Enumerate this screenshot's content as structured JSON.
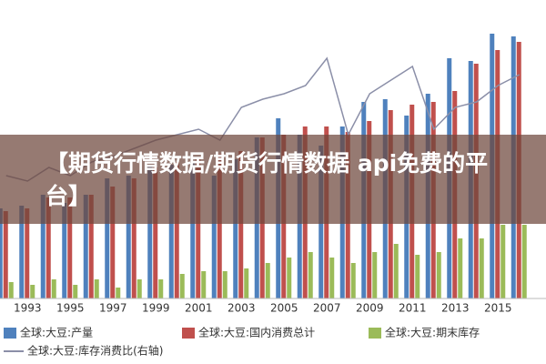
{
  "chart_data": {
    "type": "bar",
    "title": "【期货行情数据/期货行情数据 api免费的平台】",
    "categories": [
      null,
      "1993",
      null,
      "1995",
      null,
      "1997",
      null,
      "1999",
      null,
      "2001",
      null,
      "2003",
      null,
      "2005",
      null,
      "2007",
      null,
      "2009",
      null,
      "2011",
      null,
      "2013",
      null,
      "2015",
      null
    ],
    "series": [
      {
        "name": "全球:大豆:产量",
        "color": "#4f81bd",
        "values": [
          33,
          34,
          38,
          35,
          38,
          44,
          45,
          49,
          49,
          50,
          45,
          51,
          59,
          66,
          60,
          56,
          63,
          72,
          73,
          67,
          75,
          88,
          87,
          97,
          96
        ]
      },
      {
        "name": "全球:大豆:国内消费总计",
        "color": "#c0504d",
        "values": [
          32,
          33,
          37,
          37,
          38,
          41,
          44,
          48,
          50,
          51,
          53,
          54,
          59,
          60,
          63,
          63,
          61,
          65,
          69,
          71,
          72,
          76,
          86,
          91,
          94
        ]
      },
      {
        "name": "全球:大豆:期末库存",
        "color": "#9bbb59",
        "values": [
          6,
          5,
          7,
          5,
          7,
          4,
          7,
          7,
          9,
          10,
          10,
          11,
          13,
          15,
          17,
          15,
          13,
          17,
          20,
          16,
          17,
          22,
          22,
          27,
          27
        ]
      },
      {
        "name": "全球:大豆:库存消费比(右轴)",
        "color": "#8b8fa8",
        "type": "line",
        "axis": "y2",
        "values": [
          45,
          43,
          48,
          45,
          50,
          52,
          55,
          58,
          60,
          62,
          58,
          70,
          73,
          75,
          78,
          88,
          60,
          75,
          80,
          85,
          62,
          70,
          72,
          78,
          82
        ]
      }
    ],
    "ylim": [
      0,
      100
    ],
    "y2lim": [
      0,
      100
    ]
  }
}
